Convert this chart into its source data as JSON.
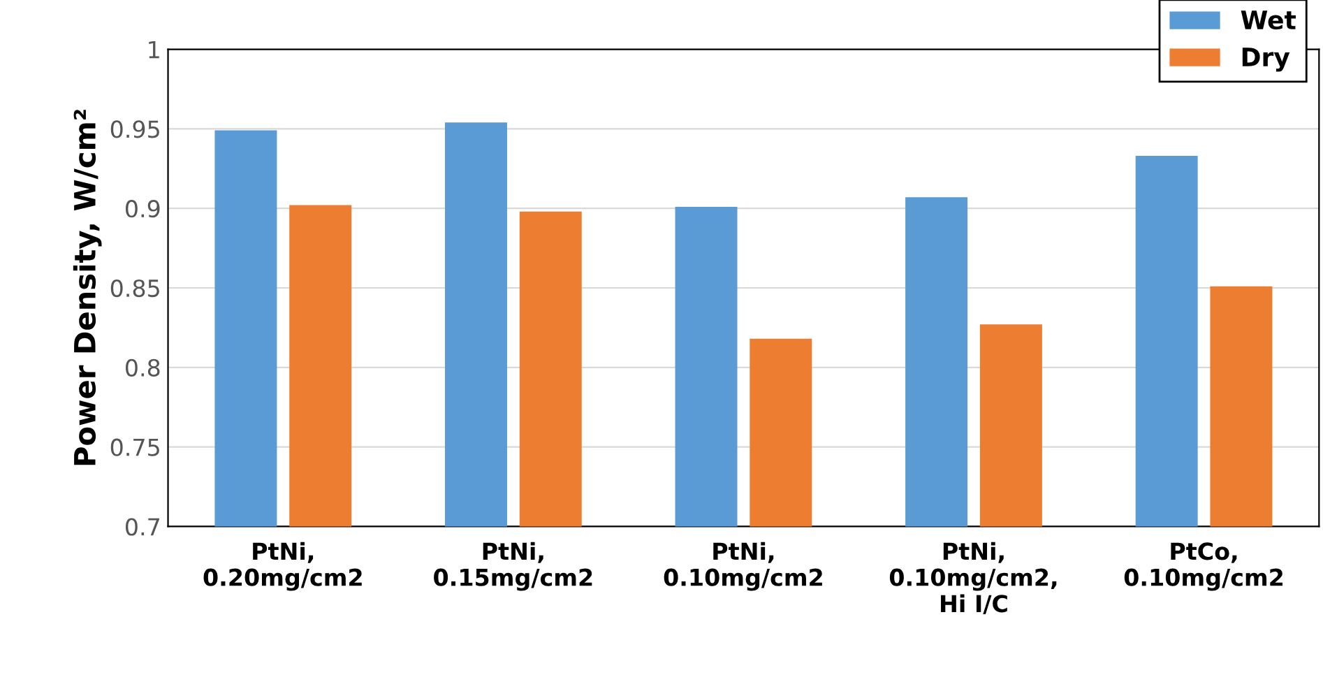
{
  "chart_data": {
    "type": "bar",
    "ylabel": "Power Density, W/cm²",
    "categories": [
      "PtNi,\n0.20mg/cm2",
      "PtNi,\n0.15mg/cm2",
      "PtNi,\n0.10mg/cm2",
      "PtNi,\n0.10mg/cm2,\nHi I/C",
      "PtCo,\n0.10mg/cm2"
    ],
    "series": [
      {
        "name": "Wet",
        "color": "#5b9bd5",
        "values": [
          0.949,
          0.954,
          0.901,
          0.907,
          0.933
        ]
      },
      {
        "name": "Dry",
        "color": "#ed7d31",
        "values": [
          0.902,
          0.898,
          0.818,
          0.827,
          0.851
        ]
      }
    ],
    "ylim": [
      0.7,
      1
    ],
    "yticks": [
      0.7,
      0.75,
      0.8,
      0.85,
      0.9,
      0.95,
      1
    ],
    "grid": "y",
    "legend": "top right"
  }
}
